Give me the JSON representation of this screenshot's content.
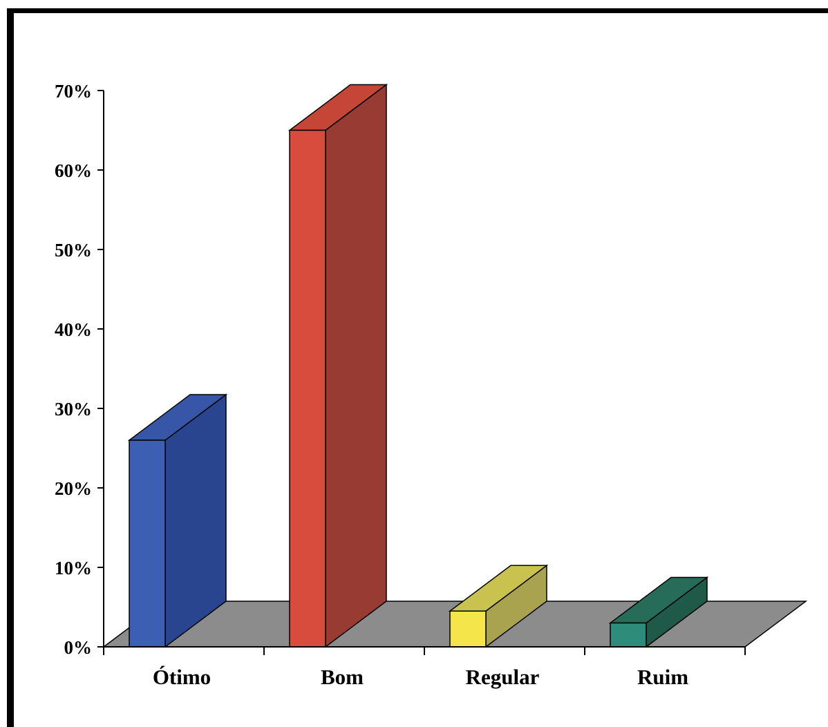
{
  "chart_data": {
    "type": "bar",
    "title": "",
    "xlabel": "",
    "ylabel": "",
    "categories": [
      "Ótimo",
      "Bom",
      "Regular",
      "Ruim"
    ],
    "values": [
      26,
      65,
      4.5,
      3
    ],
    "ylim": [
      0,
      70
    ],
    "yticks": [
      0,
      10,
      20,
      30,
      40,
      50,
      60,
      70
    ],
    "ytick_labels": [
      "0%",
      "10%",
      "20%",
      "30%",
      "40%",
      "50%",
      "60%",
      "70%"
    ],
    "style": "3d-column",
    "grid": false,
    "legend": "none",
    "colors": {
      "Ótimo": {
        "front": "#3c5fb4",
        "side": "#2a4590",
        "top": "#3756a8"
      },
      "Bom": {
        "front": "#d84c3e",
        "side": "#983c33",
        "top": "#c54536"
      },
      "Regular": {
        "front": "#f4e64a",
        "side": "#a9a350",
        "top": "#c9c24e"
      },
      "Ruim": {
        "front": "#2e8d7a",
        "side": "#1f5a48",
        "top": "#276c59"
      },
      "floor": "#8c8c8c"
    }
  }
}
